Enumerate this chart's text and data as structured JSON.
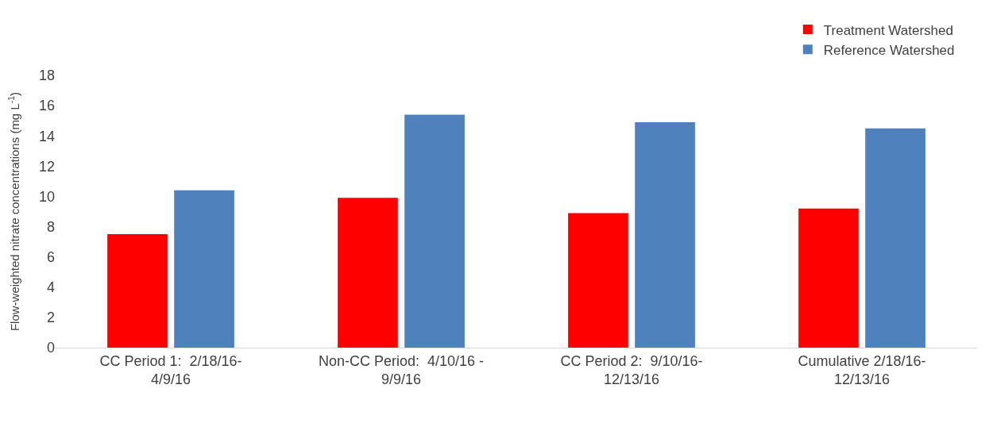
{
  "chart_data": {
    "type": "bar",
    "ylabel": "Flow-weighted nitrate concentrations (mg L$^{-1}$)",
    "categories": [
      "CC Period 1:  2/18/16-\n4/9/16",
      "Non-CC Period:  4/10/16 -\n9/9/16",
      "CC Period 2:  9/10/16-\n12/13/16",
      "Cumulative 2/18/16-\n12/13/16"
    ],
    "series": [
      {
        "name": "Treatment Watershed",
        "color": "#ff0000",
        "values": [
          7.5,
          9.9,
          8.9,
          9.2
        ]
      },
      {
        "name": "Reference Watershed",
        "color": "#4f81bd",
        "values": [
          10.4,
          15.4,
          14.9,
          14.5
        ]
      }
    ],
    "ylim": [
      0,
      18
    ],
    "yticks": [
      0,
      2,
      4,
      6,
      8,
      10,
      12,
      14,
      16,
      18
    ],
    "grid": false,
    "legend": "top right"
  }
}
